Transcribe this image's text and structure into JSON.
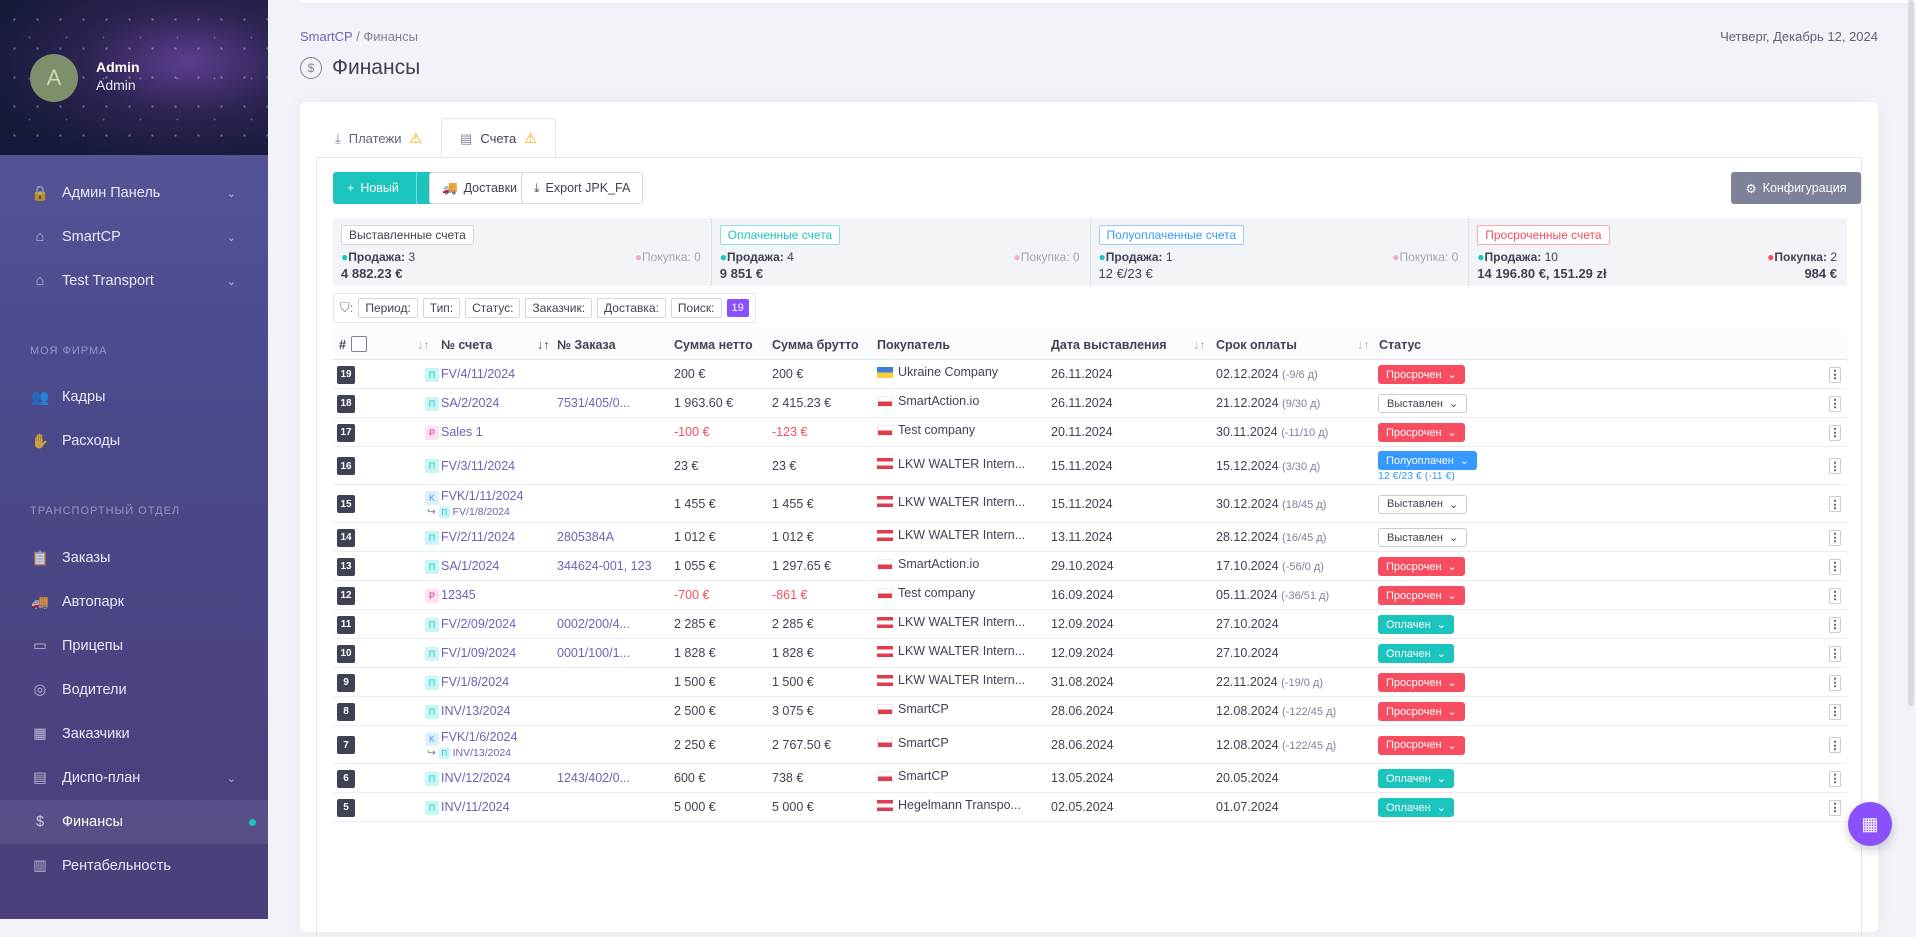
{
  "user": {
    "initial": "A",
    "name": "Admin",
    "role": "Admin"
  },
  "nav": {
    "top": [
      {
        "label": "Админ Панель"
      },
      {
        "label": "SmartCP"
      },
      {
        "label": "Test Transport"
      }
    ],
    "sec1": "МОЯ ФИРМА",
    "firm": [
      {
        "label": "Кадры"
      },
      {
        "label": "Расходы"
      }
    ],
    "sec2": "ТРАНСПОРТНЫЙ ОТДЕЛ",
    "trans": [
      {
        "label": "Заказы"
      },
      {
        "label": "Автопарк"
      },
      {
        "label": "Прицепы"
      },
      {
        "label": "Водители"
      },
      {
        "label": "Заказчики"
      },
      {
        "label": "Диспо-план"
      },
      {
        "label": "Финансы"
      },
      {
        "label": "Рентабельность"
      }
    ]
  },
  "breadcrumb": {
    "root": "SmartCP",
    "sep": "/",
    "current": "Финансы"
  },
  "date": "Четверг, Декабрь 12, 2024",
  "page_title": "Финансы",
  "tabs": [
    {
      "label": "Платежи"
    },
    {
      "label": "Счета"
    }
  ],
  "toolbar": {
    "new": "Новый",
    "deliveries": "Доставки",
    "export": "Export JPK_FA",
    "config": "Конфигурация"
  },
  "summary": [
    {
      "label": "Выставленные счета",
      "sale": "Продажа:",
      "sale_n": "3",
      "buy": "Покупка:",
      "buy_n": "0",
      "total": "4 882.23 €",
      "total2": ""
    },
    {
      "label": "Оплаченные счета",
      "sale": "Продажа:",
      "sale_n": "4",
      "buy": "Покупка:",
      "buy_n": "0",
      "total": "9 851 €",
      "total2": ""
    },
    {
      "label": "Полуоплаченные счета",
      "sale": "Продажа:",
      "sale_n": "1",
      "buy": "Покупка:",
      "buy_n": "0",
      "total": "12 €/23 €",
      "total2": ""
    },
    {
      "label": "Просроченные счета",
      "sale": "Продажа:",
      "sale_n": "10",
      "buy": "Покупка:",
      "buy_n": "2",
      "total": "14 196.80 €, 151.29 zł",
      "total2": "984 €"
    }
  ],
  "filters": {
    "items": [
      "Период:",
      "Тип:",
      "Статус:",
      "Заказчик:",
      "Доставка:",
      "Поиск:"
    ],
    "count": "19"
  },
  "columns": {
    "hash": "#",
    "inv": "№ счета",
    "ord": "№ Заказа",
    "net": "Сумма нетто",
    "gross": "Сумма брутто",
    "buyer": "Покупатель",
    "issued": "Дата выставления",
    "due": "Срок оплаты",
    "status": "Статус"
  },
  "rows": [
    {
      "n": "19",
      "t": "П",
      "inv": "FV/4/11/2024",
      "ord": "",
      "net": "200 €",
      "gross": "200 €",
      "buyer": "Ukraine Company",
      "issued": "26.11.2024",
      "due": "02.12.2024",
      "dsub": "(-9/6 д)",
      "status": "Просрочен"
    },
    {
      "n": "18",
      "t": "П",
      "inv": "SA/2/2024",
      "ord": "7531/405/0...",
      "net": "1 963.60 €",
      "gross": "2 415.23 €",
      "buyer": "SmartAction.io",
      "issued": "26.11.2024",
      "due": "21.12.2024",
      "dsub": "(9/30 д)",
      "status": "Выставлен"
    },
    {
      "n": "17",
      "t": "P",
      "inv": "Sales 1",
      "ord": "",
      "net": "-100 €",
      "gross": "-123 €",
      "buyer": "Test company",
      "issued": "20.11.2024",
      "due": "30.11.2024",
      "dsub": "(-11/10 д)",
      "status": "Просрочен"
    },
    {
      "n": "16",
      "t": "П",
      "inv": "FV/3/11/2024",
      "ord": "",
      "net": "23 €",
      "gross": "23 €",
      "buyer": "LKW WALTER Intern...",
      "issued": "15.11.2024",
      "due": "15.12.2024",
      "dsub": "(3/30 д)",
      "status": "Полуоплачен",
      "paid": "12 €/23 € (-11 €)"
    },
    {
      "n": "15",
      "t": "K",
      "inv": "FVK/1/11/2024",
      "sub": "FV/1/8/2024",
      "ord": "",
      "net": "1 455 €",
      "gross": "1 455 €",
      "buyer": "LKW WALTER Intern...",
      "issued": "15.11.2024",
      "due": "30.12.2024",
      "dsub": "(18/45 д)",
      "status": "Выставлен"
    },
    {
      "n": "14",
      "t": "П",
      "inv": "FV/2/11/2024",
      "ord": "2805384A",
      "net": "1 012 €",
      "gross": "1 012 €",
      "buyer": "LKW WALTER Intern...",
      "issued": "13.11.2024",
      "due": "28.12.2024",
      "dsub": "(16/45 д)",
      "status": "Выставлен"
    },
    {
      "n": "13",
      "t": "П",
      "inv": "SA/1/2024",
      "ord": "344624-001, 123",
      "net": "1 055 €",
      "gross": "1 297.65 €",
      "buyer": "SmartAction.io",
      "issued": "29.10.2024",
      "due": "17.10.2024",
      "dsub": "(-56/0 д)",
      "status": "Просрочен"
    },
    {
      "n": "12",
      "t": "P",
      "inv": "12345",
      "ord": "",
      "net": "-700 €",
      "gross": "-861 €",
      "buyer": "Test company",
      "issued": "16.09.2024",
      "due": "05.11.2024",
      "dsub": "(-36/51 д)",
      "status": "Просрочен"
    },
    {
      "n": "11",
      "t": "П",
      "inv": "FV/2/09/2024",
      "ord": "0002/200/4...",
      "net": "2 285 €",
      "gross": "2 285 €",
      "buyer": "LKW WALTER Intern...",
      "issued": "12.09.2024",
      "due": "27.10.2024",
      "dsub": "",
      "status": "Оплачен"
    },
    {
      "n": "10",
      "t": "П",
      "inv": "FV/1/09/2024",
      "ord": "0001/100/1...",
      "net": "1 828 €",
      "gross": "1 828 €",
      "buyer": "LKW WALTER Intern...",
      "issued": "12.09.2024",
      "due": "27.10.2024",
      "dsub": "",
      "status": "Оплачен"
    },
    {
      "n": "9",
      "t": "П",
      "inv": "FV/1/8/2024",
      "ord": "",
      "net": "1 500 €",
      "gross": "1 500 €",
      "buyer": "LKW WALTER Intern...",
      "issued": "31.08.2024",
      "due": "22.11.2024",
      "dsub": "(-19/0 д)",
      "status": "Просрочен"
    },
    {
      "n": "8",
      "t": "П",
      "inv": "INV/13/2024",
      "ord": "",
      "net": "2 500 €",
      "gross": "3 075 €",
      "buyer": "SmartCP",
      "issued": "28.06.2024",
      "due": "12.08.2024",
      "dsub": "(-122/45 д)",
      "status": "Просрочен"
    },
    {
      "n": "7",
      "t": "K",
      "inv": "FVK/1/6/2024",
      "sub": "INV/13/2024",
      "ord": "",
      "net": "2 250 €",
      "gross": "2 767.50 €",
      "buyer": "SmartCP",
      "issued": "28.06.2024",
      "due": "12.08.2024",
      "dsub": "(-122/45 д)",
      "status": "Просрочен"
    },
    {
      "n": "6",
      "t": "П",
      "inv": "INV/12/2024",
      "ord": "1243/402/0...",
      "net": "600 €",
      "gross": "738 €",
      "buyer": "SmartCP",
      "issued": "13.05.2024",
      "due": "20.05.2024",
      "dsub": "",
      "status": "Оплачен"
    },
    {
      "n": "5",
      "t": "П",
      "inv": "INV/11/2024",
      "ord": "",
      "net": "5 000 €",
      "gross": "5 000 €",
      "buyer": "Hegelmann Transpo...",
      "issued": "02.05.2024",
      "due": "01.07.2024",
      "dsub": "",
      "status": "Оплачен"
    }
  ]
}
